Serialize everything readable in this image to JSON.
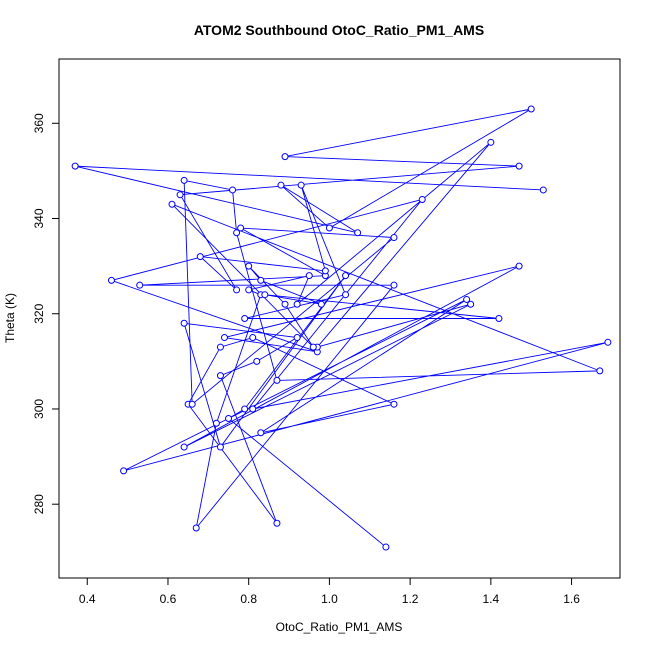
{
  "chart_data": {
    "type": "line",
    "title": "ATOM2 Southbound OtoC_Ratio_PM1_AMS",
    "xlabel": "OtoC_Ratio_PM1_AMS",
    "ylabel": "Theta (K)",
    "xlim": [
      0.33,
      1.72
    ],
    "ylim": [
      264.5,
      373.5
    ],
    "x_ticks": [
      0.4,
      0.6,
      0.8,
      1.0,
      1.2,
      1.4,
      1.6
    ],
    "x_tick_labels": [
      "0.4",
      "0.6",
      "0.8",
      "1.0",
      "1.2",
      "1.4",
      "1.6"
    ],
    "y_ticks": [
      280,
      300,
      320,
      340,
      360
    ],
    "y_tick_labels": [
      "280",
      "300",
      "320",
      "340",
      "360"
    ],
    "grid": false,
    "series": [
      {
        "color": "#0000ff",
        "marker": "open-circle",
        "x": [
          1.14,
          0.75,
          0.79,
          1.04,
          0.73,
          0.64,
          0.92,
          0.82,
          0.73,
          0.87,
          0.65,
          0.73,
          0.81,
          1.16,
          0.83,
          1.34,
          0.49,
          1.69,
          0.81,
          1.23,
          0.46,
          0.97,
          0.74,
          1.47,
          0.64,
          1.35,
          0.97,
          1.4,
          0.92,
          0.95,
          0.8,
          0.83,
          0.72,
          0.67,
          1.16,
          0.53,
          0.99,
          0.78,
          1.16,
          0.66,
          0.64,
          0.76,
          0.77,
          0.87,
          1.67,
          0.61,
          0.96,
          0.89,
          0.8,
          0.83,
          0.98,
          0.84,
          1.42,
          0.79,
          1.04,
          0.93,
          0.99,
          0.68,
          0.77,
          0.63,
          1.47,
          0.89,
          1.5,
          1.0,
          0.88,
          1.07,
          0.37,
          1.53
        ],
        "y": [
          271,
          298,
          300,
          328,
          292,
          318,
          315,
          310,
          307,
          276,
          301,
          313,
          315,
          301,
          295,
          323,
          287,
          314,
          300,
          344,
          327,
          312,
          315,
          330,
          292,
          322,
          313,
          356,
          322,
          328,
          325,
          324,
          297,
          275,
          326,
          326,
          328,
          338,
          336,
          301,
          348,
          346,
          337,
          306,
          308,
          343,
          313,
          322,
          330,
          327,
          322,
          324,
          319,
          319,
          324,
          347,
          329,
          332,
          325,
          345,
          351,
          353,
          363,
          338,
          347,
          337,
          351,
          346
        ]
      }
    ]
  }
}
